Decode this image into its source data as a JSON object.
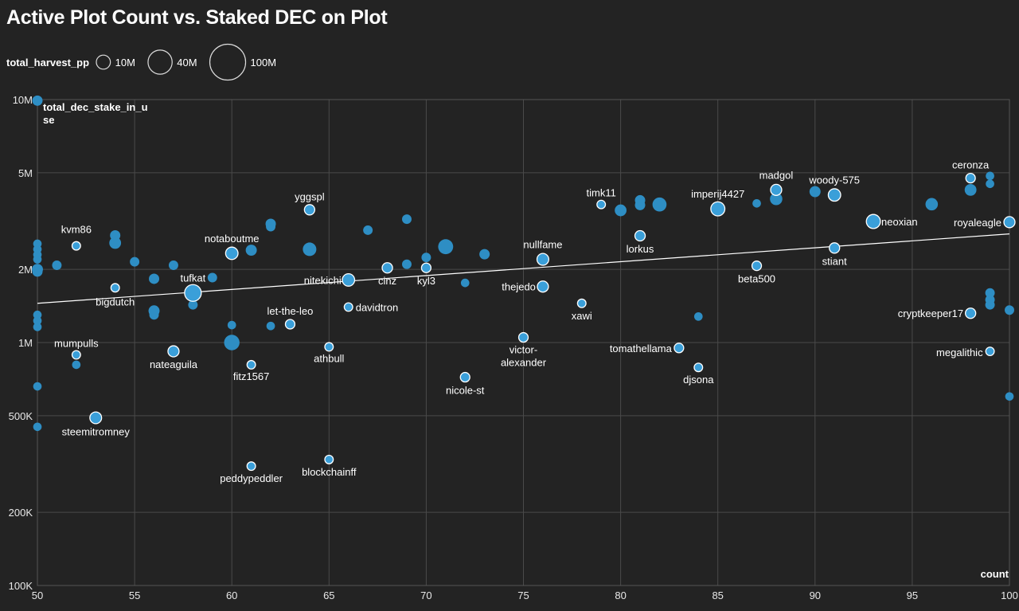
{
  "chart_data": {
    "type": "scatter",
    "title": "Active Plot Count vs. Staked DEC on Plot",
    "xlabel": "count",
    "ylabel": "total_dec_stake_in_use",
    "size_field": "total_harvest_pp",
    "xlim": [
      50,
      100
    ],
    "ylim": [
      100000,
      10000000
    ],
    "yscale": "log",
    "x_ticks": [
      {
        "v": 50,
        "label": "50"
      },
      {
        "v": 55,
        "label": "55"
      },
      {
        "v": 60,
        "label": "60"
      },
      {
        "v": 65,
        "label": "65"
      },
      {
        "v": 70,
        "label": "70"
      },
      {
        "v": 75,
        "label": "75"
      },
      {
        "v": 80,
        "label": "80"
      },
      {
        "v": 85,
        "label": "85"
      },
      {
        "v": 90,
        "label": "90"
      },
      {
        "v": 95,
        "label": "95"
      },
      {
        "v": 100,
        "label": "100"
      }
    ],
    "y_ticks": [
      {
        "v": 100000,
        "label": "100K"
      },
      {
        "v": 200000,
        "label": "200K"
      },
      {
        "v": 500000,
        "label": "500K"
      },
      {
        "v": 1000000,
        "label": "1M"
      },
      {
        "v": 2000000,
        "label": "2M"
      },
      {
        "v": 5000000,
        "label": "5M"
      },
      {
        "v": 10000000,
        "label": "10M"
      }
    ],
    "size_legend": [
      {
        "value": 10000000,
        "label": "10M"
      },
      {
        "value": 40000000,
        "label": "40M"
      },
      {
        "value": 100000000,
        "label": "100M"
      }
    ],
    "trendline": {
      "x": [
        50,
        100
      ],
      "y": [
        1450000,
        2800000
      ]
    },
    "colors": {
      "point": "#2e8ec4",
      "highlight": "#3a9fd9",
      "trend": "#ffffff",
      "grid": "#4a4a4a",
      "background": "#232323"
    },
    "labeled_points": [
      {
        "name": "kvm86",
        "x": 52,
        "y": 2500000,
        "pp": 2000000,
        "lx": 0,
        "ly": -16,
        "anchor": "middle"
      },
      {
        "name": "bigdutch",
        "x": 54,
        "y": 1680000,
        "pp": 2000000,
        "lx": 0,
        "ly": 22,
        "anchor": "middle"
      },
      {
        "name": "tufkat",
        "x": 58,
        "y": 1600000,
        "pp": 16000000,
        "lx": 0,
        "ly": -14,
        "anchor": "middle"
      },
      {
        "name": "notaboutme",
        "x": 60,
        "y": 2330000,
        "pp": 7000000,
        "lx": 0,
        "ly": -14,
        "anchor": "middle"
      },
      {
        "name": "mumpulls",
        "x": 52,
        "y": 890000,
        "pp": 2000000,
        "lx": 0,
        "ly": -10,
        "anchor": "middle"
      },
      {
        "name": "nateaguila",
        "x": 57,
        "y": 920000,
        "pp": 5000000,
        "lx": 0,
        "ly": 21,
        "anchor": "middle"
      },
      {
        "name": "steemitromney",
        "x": 53,
        "y": 490000,
        "pp": 6000000,
        "lx": 0,
        "ly": 22,
        "anchor": "middle"
      },
      {
        "name": "fitz1567",
        "x": 61,
        "y": 810000,
        "pp": 2000000,
        "lx": 0,
        "ly": 19,
        "anchor": "middle"
      },
      {
        "name": "let-the-leo",
        "x": 63,
        "y": 1190000,
        "pp": 3000000,
        "lx": 0,
        "ly": -12,
        "anchor": "middle"
      },
      {
        "name": "yggspl",
        "x": 64,
        "y": 3520000,
        "pp": 4000000,
        "lx": 0,
        "ly": -12,
        "anchor": "middle"
      },
      {
        "name": "nitekichi",
        "x": 66,
        "y": 1810000,
        "pp": 7000000,
        "lx": -9,
        "ly": 5,
        "anchor": "end"
      },
      {
        "name": "davidtron",
        "x": 66,
        "y": 1400000,
        "pp": 2000000,
        "lx": 9,
        "ly": 5,
        "anchor": "start"
      },
      {
        "name": "athbull",
        "x": 65,
        "y": 960000,
        "pp": 2000000,
        "lx": 0,
        "ly": 19,
        "anchor": "middle"
      },
      {
        "name": "peddypeddler",
        "x": 61,
        "y": 310000,
        "pp": 2000000,
        "lx": 0,
        "ly": 20,
        "anchor": "middle"
      },
      {
        "name": "blockchainff",
        "x": 65,
        "y": 330000,
        "pp": 2000000,
        "lx": 0,
        "ly": 20,
        "anchor": "middle"
      },
      {
        "name": "cinz",
        "x": 68,
        "y": 2030000,
        "pp": 4000000,
        "lx": 0,
        "ly": 21,
        "anchor": "middle"
      },
      {
        "name": "kyl3",
        "x": 70,
        "y": 2030000,
        "pp": 3000000,
        "lx": 0,
        "ly": 21,
        "anchor": "middle"
      },
      {
        "name": "nicole-st",
        "x": 72,
        "y": 720000,
        "pp": 3000000,
        "lx": 0,
        "ly": 21,
        "anchor": "middle"
      },
      {
        "name": "victor-alexander",
        "lines": [
          "victor-",
          "alexander"
        ],
        "x": 75,
        "y": 1050000,
        "pp": 3000000,
        "lx": 0,
        "ly": 20,
        "anchor": "middle"
      },
      {
        "name": "nullfame",
        "x": 76,
        "y": 2200000,
        "pp": 6000000,
        "lx": 0,
        "ly": -14,
        "anchor": "middle"
      },
      {
        "name": "thejedo",
        "x": 76,
        "y": 1700000,
        "pp": 5000000,
        "lx": -9,
        "ly": 5,
        "anchor": "end"
      },
      {
        "name": "xawi",
        "x": 78,
        "y": 1450000,
        "pp": 2000000,
        "lx": 0,
        "ly": 20,
        "anchor": "middle"
      },
      {
        "name": "timk11",
        "x": 79,
        "y": 3700000,
        "pp": 2000000,
        "lx": 0,
        "ly": -10,
        "anchor": "middle"
      },
      {
        "name": "lorkus",
        "x": 81,
        "y": 2750000,
        "pp": 4000000,
        "lx": 0,
        "ly": 21,
        "anchor": "middle"
      },
      {
        "name": "tomathellama",
        "x": 83,
        "y": 950000,
        "pp": 3000000,
        "lx": -9,
        "ly": 5,
        "anchor": "end"
      },
      {
        "name": "djsona",
        "x": 84,
        "y": 790000,
        "pp": 2000000,
        "lx": 0,
        "ly": 20,
        "anchor": "middle"
      },
      {
        "name": "imperij4427",
        "x": 85,
        "y": 3550000,
        "pp": 10000000,
        "lx": 0,
        "ly": -14,
        "anchor": "middle"
      },
      {
        "name": "beta500",
        "x": 87,
        "y": 2070000,
        "pp": 3000000,
        "lx": 0,
        "ly": 21,
        "anchor": "middle"
      },
      {
        "name": "madgol",
        "x": 88,
        "y": 4250000,
        "pp": 5000000,
        "lx": 0,
        "ly": -14,
        "anchor": "middle"
      },
      {
        "name": "woody-575",
        "x": 91,
        "y": 4050000,
        "pp": 7000000,
        "lx": 0,
        "ly": -14,
        "anchor": "middle"
      },
      {
        "name": "stiant",
        "x": 91,
        "y": 2450000,
        "pp": 4000000,
        "lx": 0,
        "ly": 21,
        "anchor": "middle"
      },
      {
        "name": "neoxian",
        "x": 93,
        "y": 3150000,
        "pp": 10000000,
        "lx": 10,
        "ly": 5,
        "anchor": "start"
      },
      {
        "name": "ceronza",
        "x": 98,
        "y": 4750000,
        "pp": 3000000,
        "lx": 0,
        "ly": -12,
        "anchor": "middle"
      },
      {
        "name": "royaleagle",
        "x": 100,
        "y": 3130000,
        "pp": 5000000,
        "lx": -10,
        "ly": 5,
        "anchor": "end"
      },
      {
        "name": "cryptkeeper17",
        "x": 98,
        "y": 1320000,
        "pp": 4000000,
        "lx": -9,
        "ly": 5,
        "anchor": "end"
      },
      {
        "name": "megalithic",
        "x": 99,
        "y": 920000,
        "pp": 2000000,
        "lx": -9,
        "ly": 6,
        "anchor": "end"
      }
    ],
    "unlabeled_points": [
      {
        "x": 50,
        "y": 9900000,
        "pp": 4000000
      },
      {
        "x": 50,
        "y": 2550000,
        "pp": 2000000
      },
      {
        "x": 50,
        "y": 2420000,
        "pp": 2000000
      },
      {
        "x": 50,
        "y": 2000000,
        "pp": 5000000
      },
      {
        "x": 50,
        "y": 1960000,
        "pp": 4000000
      },
      {
        "x": 50,
        "y": 2300000,
        "pp": 2000000
      },
      {
        "x": 50,
        "y": 2200000,
        "pp": 2000000
      },
      {
        "x": 50,
        "y": 1300000,
        "pp": 2000000
      },
      {
        "x": 50,
        "y": 1230000,
        "pp": 2000000
      },
      {
        "x": 50,
        "y": 1160000,
        "pp": 2000000
      },
      {
        "x": 50,
        "y": 660000,
        "pp": 2000000
      },
      {
        "x": 50,
        "y": 450000,
        "pp": 2000000
      },
      {
        "x": 51,
        "y": 2080000,
        "pp": 3000000
      },
      {
        "x": 52,
        "y": 810000,
        "pp": 2000000
      },
      {
        "x": 54,
        "y": 2760000,
        "pp": 4000000
      },
      {
        "x": 54,
        "y": 2570000,
        "pp": 6000000
      },
      {
        "x": 55,
        "y": 2150000,
        "pp": 3000000
      },
      {
        "x": 56,
        "y": 1830000,
        "pp": 4000000
      },
      {
        "x": 56,
        "y": 1350000,
        "pp": 5000000
      },
      {
        "x": 56,
        "y": 1300000,
        "pp": 3000000
      },
      {
        "x": 57,
        "y": 2080000,
        "pp": 3000000
      },
      {
        "x": 58,
        "y": 1430000,
        "pp": 3000000
      },
      {
        "x": 59,
        "y": 1850000,
        "pp": 3000000
      },
      {
        "x": 60,
        "y": 1180000,
        "pp": 2000000
      },
      {
        "x": 60,
        "y": 1000000,
        "pp": 13000000
      },
      {
        "x": 61,
        "y": 2400000,
        "pp": 5000000
      },
      {
        "x": 62,
        "y": 3080000,
        "pp": 4000000
      },
      {
        "x": 62,
        "y": 3000000,
        "pp": 3000000
      },
      {
        "x": 62,
        "y": 1170000,
        "pp": 2000000
      },
      {
        "x": 64,
        "y": 2420000,
        "pp": 9000000
      },
      {
        "x": 67,
        "y": 2900000,
        "pp": 3000000
      },
      {
        "x": 69,
        "y": 3220000,
        "pp": 3000000
      },
      {
        "x": 69,
        "y": 2100000,
        "pp": 3000000
      },
      {
        "x": 70,
        "y": 2240000,
        "pp": 3000000
      },
      {
        "x": 71,
        "y": 2480000,
        "pp": 12000000
      },
      {
        "x": 72,
        "y": 1760000,
        "pp": 2000000
      },
      {
        "x": 73,
        "y": 2310000,
        "pp": 4000000
      },
      {
        "x": 80,
        "y": 3500000,
        "pp": 6000000
      },
      {
        "x": 81,
        "y": 3850000,
        "pp": 4000000
      },
      {
        "x": 81,
        "y": 3680000,
        "pp": 4000000
      },
      {
        "x": 82,
        "y": 3700000,
        "pp": 10000000
      },
      {
        "x": 84,
        "y": 1280000,
        "pp": 2000000
      },
      {
        "x": 87,
        "y": 3740000,
        "pp": 2000000
      },
      {
        "x": 88,
        "y": 3900000,
        "pp": 7000000
      },
      {
        "x": 90,
        "y": 4180000,
        "pp": 5000000
      },
      {
        "x": 96,
        "y": 3710000,
        "pp": 7000000
      },
      {
        "x": 98,
        "y": 4250000,
        "pp": 6000000
      },
      {
        "x": 99,
        "y": 4850000,
        "pp": 2000000
      },
      {
        "x": 99,
        "y": 4500000,
        "pp": 2000000
      },
      {
        "x": 99,
        "y": 1600000,
        "pp": 3000000
      },
      {
        "x": 99,
        "y": 1500000,
        "pp": 3000000
      },
      {
        "x": 99,
        "y": 1430000,
        "pp": 3000000
      },
      {
        "x": 100,
        "y": 1360000,
        "pp": 3000000
      },
      {
        "x": 100,
        "y": 600000,
        "pp": 2000000
      }
    ]
  }
}
